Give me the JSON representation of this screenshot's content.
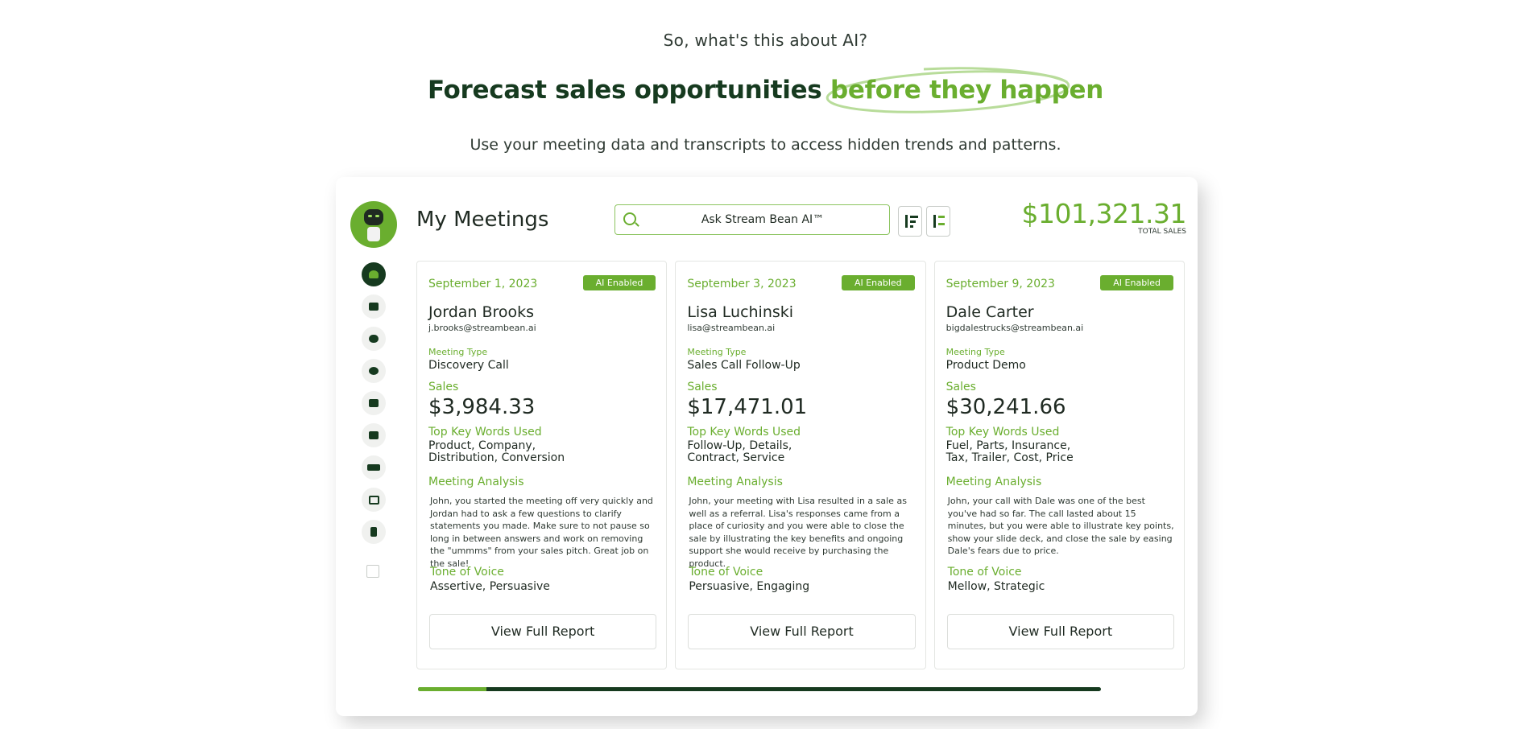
{
  "hero": {
    "eyebrow": "So, what's this about AI?",
    "headline_main": "Forecast sales opportunities",
    "headline_highlight": "before they happen",
    "subtitle": "Use your meeting data and transcripts to access hidden trends and patterns."
  },
  "colors": {
    "accent": "#6aae2f",
    "dark": "#163a1f",
    "text": "#1f2a22"
  },
  "app": {
    "title": "My Meetings",
    "search": {
      "value": "Ask Stream Bean AI™",
      "icon": "search-icon"
    },
    "sort_buttons": [
      "sort-descending-icon",
      "sort-alpha-icon"
    ],
    "total_sales": {
      "amount": "$101,321.31",
      "label": "TOTAL SALES"
    },
    "nav_icons": [
      "rocket-icon",
      "presentation-icon",
      "robot-icon",
      "team-icon",
      "calendar-icon",
      "report-icon",
      "stripe-icon",
      "video-icon",
      "exit-icon",
      "external-link-icon"
    ],
    "progress": 0.1
  },
  "labels": {
    "meeting_type": "Meeting Type",
    "sales": "Sales",
    "keywords": "Top Key Words Used",
    "analysis": "Meeting Analysis",
    "tone": "Tone of Voice",
    "button": "View Full Report"
  },
  "meetings": [
    {
      "date": "September 1, 2023",
      "badge": "AI Enabled",
      "name": "Jordan Brooks",
      "email": "j.brooks@streambean.ai",
      "meeting_type": "Discovery Call",
      "sales": "$3,984.33",
      "keywords_l1": "Product, Company,",
      "keywords_l2": "Distribution, Conversion",
      "analysis": "John, you started the meeting off very quickly and Jordan had to ask a few questions to clarify statements you made. Make sure to not pause so long in between answers and work on removing the \"ummms\" from your sales pitch. Great job on the sale!",
      "tone": "Assertive, Persuasive"
    },
    {
      "date": "September 3, 2023",
      "badge": "AI Enabled",
      "name": "Lisa Luchinski",
      "email": "lisa@streambean.ai",
      "meeting_type": "Sales Call Follow-Up",
      "sales": "$17,471.01",
      "keywords_l1": "Follow-Up, Details,",
      "keywords_l2": "Contract, Service",
      "analysis": "John, your meeting with Lisa resulted in a sale as well as a referral. Lisa's responses came from a place of curiosity and you were able to close the sale by illustrating the key benefits and ongoing support she would receive by purchasing the product.",
      "tone": "Persuasive, Engaging"
    },
    {
      "date": "September 9, 2023",
      "badge": "AI Enabled",
      "name": "Dale Carter",
      "email": "bigdalestrucks@streambean.ai",
      "meeting_type": "Product Demo",
      "sales": "$30,241.66",
      "keywords_l1": "Fuel, Parts, Insurance,",
      "keywords_l2": "Tax, Trailer, Cost, Price",
      "analysis": "John, your call with Dale was one of the best you've had so far. The call lasted about 15 minutes, but you were able to illustrate key points, show your slide deck, and close the sale by easing Dale's fears due to price.",
      "tone": "Mellow, Strategic"
    }
  ]
}
